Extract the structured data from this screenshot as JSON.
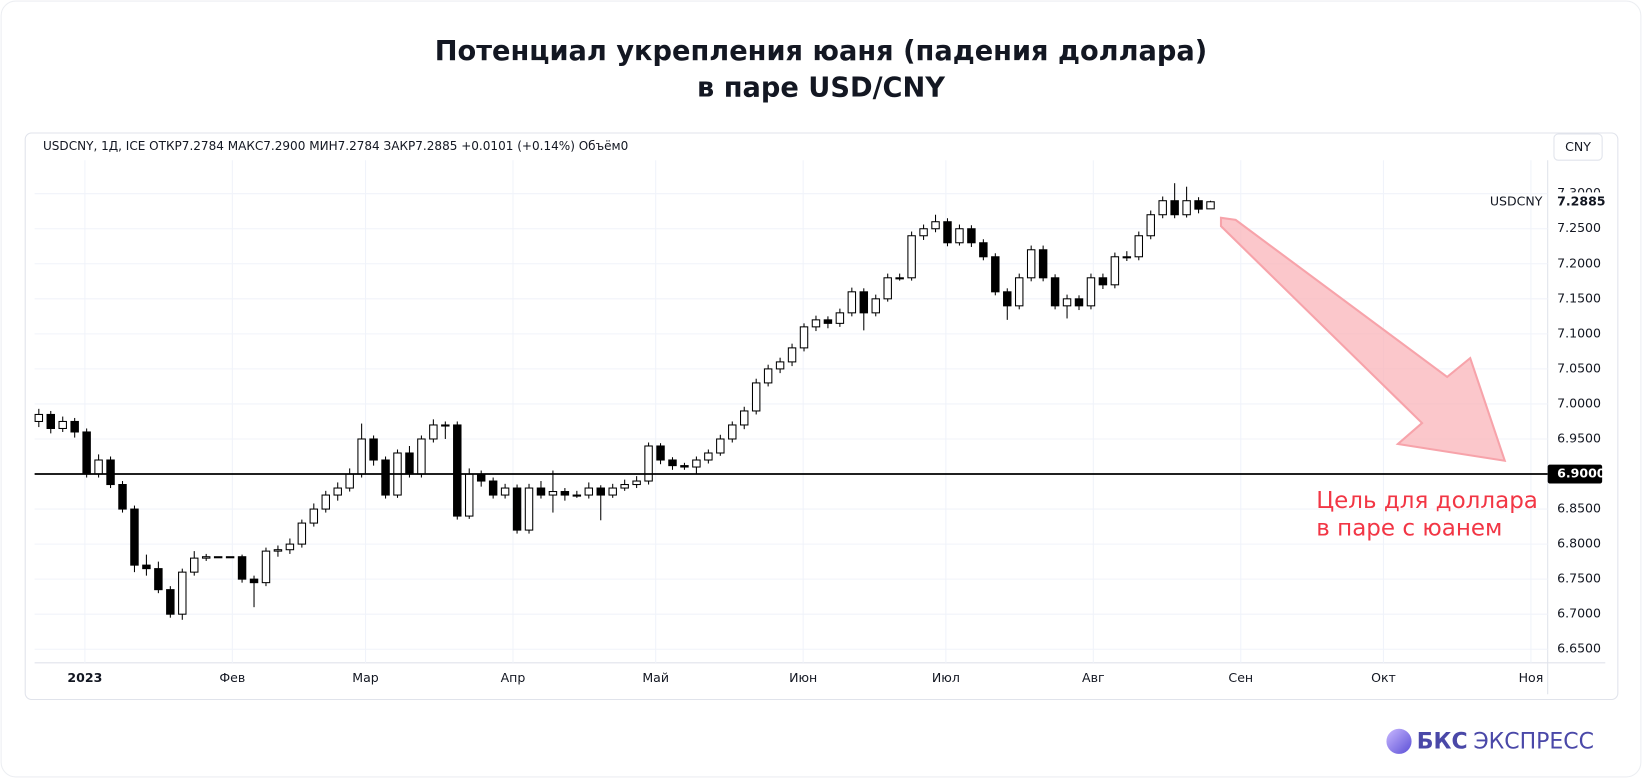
{
  "chart_data": {
    "type": "candlestick",
    "title_lines": [
      "Потенциал укрепления юаня (падения доллара)",
      "в паре USD/CNY"
    ],
    "legend_text": "USDCNY, 1Д, ICE  ОТКР7.2784  МАКС7.2900  МИН7.2784  ЗАКР7.2885  +0.0101 (+0.14%)  Объём0",
    "currency": "CNY",
    "symbol": "USDCNY",
    "up_color": "#ffffff",
    "down_color": "#000000",
    "edge_color": "#000000",
    "grid": true,
    "grid_color": "#f0f3fa",
    "ylim": [
      6.6306,
      7.3478
    ],
    "yticks": [
      {
        "value": 6.65,
        "label": "6.6500"
      },
      {
        "value": 6.7,
        "label": "6.7000"
      },
      {
        "value": 6.75,
        "label": "6.7500"
      },
      {
        "value": 6.8,
        "label": "6.8000"
      },
      {
        "value": 6.85,
        "label": "6.8500"
      },
      {
        "value": 6.9,
        "label": "6.9000"
      },
      {
        "value": 6.95,
        "label": "6.9500"
      },
      {
        "value": 7.0,
        "label": "7.0000"
      },
      {
        "value": 7.05,
        "label": "7.0500"
      },
      {
        "value": 7.1,
        "label": "7.1000"
      },
      {
        "value": 7.15,
        "label": "7.1500"
      },
      {
        "value": 7.2,
        "label": "7.2000"
      },
      {
        "value": 7.25,
        "label": "7.2500"
      },
      {
        "value": 7.3,
        "label": "7.3000"
      }
    ],
    "xticks": [
      {
        "value": "2023-01",
        "label": "2023"
      },
      {
        "value": "2023-02",
        "label": "Фев"
      },
      {
        "value": "2023-03",
        "label": "Мар"
      },
      {
        "value": "2023-04",
        "label": "Апр"
      },
      {
        "value": "2023-05",
        "label": "Май"
      },
      {
        "value": "2023-06",
        "label": "Июн"
      },
      {
        "value": "2023-07",
        "label": "Июл"
      },
      {
        "value": "2023-08",
        "label": "Авг"
      },
      {
        "value": "2023-09",
        "label": "Сен"
      },
      {
        "value": "2023-10",
        "label": "Окт"
      },
      {
        "value": "2023-11",
        "label": "Ноя"
      }
    ],
    "candles": [
      [
        6.975,
        6.993,
        6.967,
        6.985
      ],
      [
        6.985,
        6.99,
        6.958,
        6.965
      ],
      [
        6.965,
        6.982,
        6.96,
        6.975
      ],
      [
        6.975,
        6.98,
        6.952,
        6.96
      ],
      [
        6.96,
        6.965,
        6.895,
        6.9
      ],
      [
        6.9,
        6.928,
        6.895,
        6.92
      ],
      [
        6.92,
        6.925,
        6.88,
        6.885
      ],
      [
        6.885,
        6.89,
        6.845,
        6.85
      ],
      [
        6.85,
        6.855,
        6.76,
        6.77
      ],
      [
        6.77,
        6.785,
        6.755,
        6.765
      ],
      [
        6.765,
        6.775,
        6.73,
        6.735
      ],
      [
        6.735,
        6.74,
        6.695,
        6.7
      ],
      [
        6.7,
        6.765,
        6.692,
        6.76
      ],
      [
        6.76,
        6.79,
        6.755,
        6.78
      ],
      [
        6.78,
        6.786,
        6.776,
        6.782
      ],
      [
        6.782,
        6.782,
        6.782,
        6.782
      ],
      [
        6.782,
        6.782,
        6.782,
        6.782
      ],
      [
        6.782,
        6.785,
        6.745,
        6.75
      ],
      [
        6.75,
        6.755,
        6.71,
        6.745
      ],
      [
        6.745,
        6.795,
        6.74,
        6.79
      ],
      [
        6.79,
        6.798,
        6.782,
        6.792
      ],
      [
        6.792,
        6.808,
        6.786,
        6.8
      ],
      [
        6.8,
        6.835,
        6.795,
        6.83
      ],
      [
        6.83,
        6.858,
        6.825,
        6.85
      ],
      [
        6.85,
        6.876,
        6.845,
        6.87
      ],
      [
        6.87,
        6.888,
        6.862,
        6.88
      ],
      [
        6.88,
        6.908,
        6.875,
        6.9
      ],
      [
        6.9,
        6.972,
        6.895,
        6.95
      ],
      [
        6.95,
        6.955,
        6.912,
        6.92
      ],
      [
        6.92,
        6.925,
        6.865,
        6.87
      ],
      [
        6.87,
        6.935,
        6.866,
        6.93
      ],
      [
        6.93,
        6.94,
        6.895,
        6.9
      ],
      [
        6.9,
        6.955,
        6.895,
        6.95
      ],
      [
        6.95,
        6.978,
        6.945,
        6.97
      ],
      [
        6.97,
        6.975,
        6.95,
        6.97
      ],
      [
        6.97,
        6.975,
        6.835,
        6.84
      ],
      [
        6.84,
        6.908,
        6.836,
        6.9
      ],
      [
        6.9,
        6.905,
        6.882,
        6.89
      ],
      [
        6.89,
        6.895,
        6.865,
        6.87
      ],
      [
        6.87,
        6.886,
        6.865,
        6.88
      ],
      [
        6.88,
        6.885,
        6.815,
        6.82
      ],
      [
        6.82,
        6.886,
        6.815,
        6.88
      ],
      [
        6.88,
        6.89,
        6.865,
        6.87
      ],
      [
        6.87,
        6.905,
        6.845,
        6.875
      ],
      [
        6.875,
        6.88,
        6.862,
        6.87
      ],
      [
        6.87,
        6.876,
        6.866,
        6.87
      ],
      [
        6.87,
        6.888,
        6.865,
        6.88
      ],
      [
        6.88,
        6.884,
        6.834,
        6.87
      ],
      [
        6.87,
        6.886,
        6.866,
        6.88
      ],
      [
        6.88,
        6.892,
        6.876,
        6.885
      ],
      [
        6.885,
        6.897,
        6.88,
        6.89
      ],
      [
        6.89,
        6.945,
        6.885,
        6.94
      ],
      [
        6.94,
        6.944,
        6.914,
        6.92
      ],
      [
        6.92,
        6.924,
        6.906,
        6.912
      ],
      [
        6.912,
        6.916,
        6.906,
        6.91
      ],
      [
        6.91,
        6.925,
        6.9,
        6.92
      ],
      [
        6.92,
        6.935,
        6.915,
        6.93
      ],
      [
        6.93,
        6.956,
        6.926,
        6.95
      ],
      [
        6.95,
        6.975,
        6.945,
        6.97
      ],
      [
        6.97,
        6.996,
        6.964,
        6.99
      ],
      [
        6.99,
        7.036,
        6.985,
        7.03
      ],
      [
        7.03,
        7.056,
        7.025,
        7.05
      ],
      [
        7.05,
        7.066,
        7.044,
        7.06
      ],
      [
        7.06,
        7.086,
        7.054,
        7.08
      ],
      [
        7.08,
        7.115,
        7.075,
        7.11
      ],
      [
        7.11,
        7.126,
        7.104,
        7.12
      ],
      [
        7.12,
        7.125,
        7.108,
        7.115
      ],
      [
        7.115,
        7.136,
        7.11,
        7.13
      ],
      [
        7.13,
        7.166,
        7.125,
        7.16
      ],
      [
        7.16,
        7.165,
        7.105,
        7.13
      ],
      [
        7.13,
        7.156,
        7.125,
        7.15
      ],
      [
        7.15,
        7.186,
        7.146,
        7.18
      ],
      [
        7.18,
        7.186,
        7.176,
        7.18
      ],
      [
        7.18,
        7.246,
        7.176,
        7.24
      ],
      [
        7.24,
        7.256,
        7.234,
        7.25
      ],
      [
        7.25,
        7.27,
        7.245,
        7.26
      ],
      [
        7.26,
        7.265,
        7.225,
        7.23
      ],
      [
        7.23,
        7.256,
        7.226,
        7.25
      ],
      [
        7.25,
        7.255,
        7.224,
        7.23
      ],
      [
        7.23,
        7.235,
        7.205,
        7.21
      ],
      [
        7.21,
        7.215,
        7.155,
        7.16
      ],
      [
        7.16,
        7.165,
        7.12,
        7.14
      ],
      [
        7.14,
        7.186,
        7.135,
        7.18
      ],
      [
        7.18,
        7.226,
        7.175,
        7.22
      ],
      [
        7.22,
        7.226,
        7.175,
        7.18
      ],
      [
        7.18,
        7.185,
        7.135,
        7.14
      ],
      [
        7.14,
        7.156,
        7.122,
        7.15
      ],
      [
        7.15,
        7.155,
        7.134,
        7.14
      ],
      [
        7.14,
        7.186,
        7.135,
        7.18
      ],
      [
        7.18,
        7.186,
        7.164,
        7.17
      ],
      [
        7.17,
        7.216,
        7.165,
        7.21
      ],
      [
        7.21,
        7.218,
        7.204,
        7.21
      ],
      [
        7.21,
        7.246,
        7.205,
        7.24
      ],
      [
        7.24,
        7.276,
        7.235,
        7.27
      ],
      [
        7.27,
        7.296,
        7.265,
        7.29
      ],
      [
        7.29,
        7.315,
        7.265,
        7.27
      ],
      [
        7.27,
        7.31,
        7.266,
        7.29
      ],
      [
        7.29,
        7.295,
        7.272,
        7.278
      ],
      [
        7.2784,
        7.29,
        7.2784,
        7.2885
      ]
    ],
    "level": {
      "value": 6.9,
      "label": "6.9000",
      "color": "#000000"
    },
    "annotation_lines": [
      "Цель для доллара",
      "в паре с юанем"
    ],
    "annotation_color": "#f23645",
    "brand": {
      "name": "БКС",
      "tagline": "ЭКСПРЕСС"
    }
  }
}
